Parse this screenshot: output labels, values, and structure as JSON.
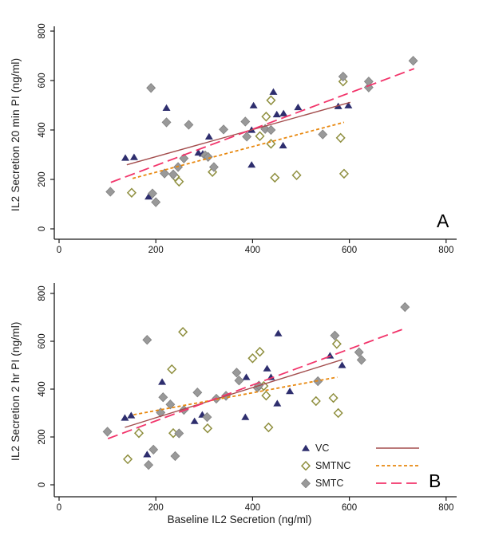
{
  "chart_data": [
    {
      "type": "scatter",
      "panel_label": "A",
      "xlabel": "",
      "ylabel": "IL2 Secretion 20 min PI (ng/ml)",
      "xlim": [
        0,
        800
      ],
      "ylim": [
        0,
        800
      ],
      "x_ticks": [
        0,
        200,
        400,
        600,
        800
      ],
      "y_ticks": [
        0,
        200,
        400,
        600,
        800
      ],
      "grid": false,
      "series": [
        {
          "name": "VC",
          "marker": "triangle",
          "color": "#2e2e6e",
          "points": [
            [
              137,
              287
            ],
            [
              155,
              290
            ],
            [
              185,
              130
            ],
            [
              222,
              489
            ],
            [
              288,
              308
            ],
            [
              297,
              304
            ],
            [
              310,
              373
            ],
            [
              398,
              259
            ],
            [
              398,
              400
            ],
            [
              402,
              499
            ],
            [
              443,
              554
            ],
            [
              450,
              463
            ],
            [
              463,
              337
            ],
            [
              464,
              467
            ],
            [
              494,
              492
            ],
            [
              577,
              496
            ],
            [
              598,
              499
            ]
          ],
          "trend": {
            "style": "solid",
            "color": "#a34d4d",
            "from": [
              140,
              259
            ],
            "to": [
              602,
              512
            ]
          }
        },
        {
          "name": "SMTNC",
          "marker": "open-diamond",
          "color": "#8f8f3f",
          "points": [
            [
              150,
              146
            ],
            [
              240,
              211
            ],
            [
              248,
              191
            ],
            [
              317,
              230
            ],
            [
              415,
              375
            ],
            [
              428,
              454
            ],
            [
              438,
              344
            ],
            [
              438,
              520
            ],
            [
              446,
              207
            ],
            [
              491,
              217
            ],
            [
              582,
              368
            ],
            [
              587,
              596
            ],
            [
              589,
              223
            ]
          ],
          "trend": {
            "style": "dash",
            "color": "#e8880f",
            "from": [
              152,
              204
            ],
            "to": [
              589,
              431
            ]
          }
        },
        {
          "name": "SMTC",
          "marker": "diamond",
          "color": "#999999",
          "points": [
            [
              106,
              150
            ],
            [
              190,
              570
            ],
            [
              193,
              143
            ],
            [
              200,
              108
            ],
            [
              218,
              224
            ],
            [
              222,
              431
            ],
            [
              236,
              220
            ],
            [
              246,
              250
            ],
            [
              258,
              285
            ],
            [
              268,
              421
            ],
            [
              302,
              297
            ],
            [
              308,
              291
            ],
            [
              320,
              250
            ],
            [
              340,
              402
            ],
            [
              385,
              434
            ],
            [
              388,
              373
            ],
            [
              426,
              404
            ],
            [
              438,
              400
            ],
            [
              545,
              382
            ],
            [
              587,
              616
            ],
            [
              640,
              572
            ],
            [
              640,
              596
            ],
            [
              732,
              680
            ]
          ],
          "trend": {
            "style": "longdash",
            "color": "#f2356b",
            "from": [
              107,
              188
            ],
            "to": [
              734,
              648
            ]
          }
        }
      ]
    },
    {
      "type": "scatter",
      "panel_label": "B",
      "xlabel": "Baseline IL2 Secretion (ng/ml)",
      "ylabel": "IL2 Secretion 2 hr PI (ng/ml)",
      "xlim": [
        0,
        800
      ],
      "ylim": [
        0,
        800
      ],
      "x_ticks": [
        0,
        200,
        400,
        600,
        800
      ],
      "y_ticks": [
        0,
        200,
        400,
        600,
        800
      ],
      "grid": false,
      "series": [
        {
          "name": "VC",
          "marker": "triangle",
          "color": "#2e2e6e",
          "points": [
            [
              136,
              280
            ],
            [
              149,
              290
            ],
            [
              182,
              127
            ],
            [
              213,
              430
            ],
            [
              280,
              266
            ],
            [
              296,
              293
            ],
            [
              385,
              283
            ],
            [
              387,
              450
            ],
            [
              430,
              486
            ],
            [
              438,
              450
            ],
            [
              451,
              340
            ],
            [
              453,
              633
            ],
            [
              477,
              391
            ],
            [
              560,
              540
            ],
            [
              585,
              500
            ]
          ],
          "trend": {
            "style": "solid",
            "color": "#a34d4d",
            "from": [
              136,
              240
            ],
            "to": [
              585,
              523
            ]
          }
        },
        {
          "name": "SMTNC",
          "marker": "open-diamond",
          "color": "#8f8f3f",
          "points": [
            [
              142,
              107
            ],
            [
              165,
              216
            ],
            [
              233,
              483
            ],
            [
              236,
              216
            ],
            [
              256,
              639
            ],
            [
              307,
              236
            ],
            [
              400,
              529
            ],
            [
              415,
              556
            ],
            [
              423,
              413
            ],
            [
              428,
              373
            ],
            [
              433,
              240
            ],
            [
              531,
              350
            ],
            [
              567,
              363
            ],
            [
              574,
              589
            ],
            [
              577,
              300
            ]
          ],
          "trend": {
            "style": "dash",
            "color": "#e8880f",
            "from": [
              154,
              293
            ],
            "to": [
              575,
              450
            ]
          }
        },
        {
          "name": "SMTC",
          "marker": "diamond",
          "color": "#999999",
          "points": [
            [
              100,
              222
            ],
            [
              182,
              606
            ],
            [
              185,
              83
            ],
            [
              195,
              147
            ],
            [
              210,
              302
            ],
            [
              215,
              366
            ],
            [
              230,
              336
            ],
            [
              240,
              120
            ],
            [
              248,
              215
            ],
            [
              258,
              313
            ],
            [
              286,
              386
            ],
            [
              306,
              283
            ],
            [
              325,
              360
            ],
            [
              345,
              372
            ],
            [
              367,
              469
            ],
            [
              372,
              436
            ],
            [
              410,
              406
            ],
            [
              413,
              415
            ],
            [
              535,
              433
            ],
            [
              570,
              624
            ],
            [
              620,
              554
            ],
            [
              625,
              522
            ],
            [
              715,
              743
            ]
          ],
          "trend": {
            "style": "longdash",
            "color": "#f2356b",
            "from": [
              101,
              193
            ],
            "to": [
              714,
              653
            ]
          }
        }
      ]
    }
  ],
  "legend": {
    "entries": [
      {
        "label": "VC",
        "marker": "triangle",
        "marker_color": "#2e2e6e",
        "line_style": "solid",
        "line_color": "#a34d4d"
      },
      {
        "label": "SMTNC",
        "marker": "open-diamond",
        "marker_color": "#8f8f3f",
        "line_style": "dash",
        "line_color": "#e8880f"
      },
      {
        "label": "SMTC",
        "marker": "diamond",
        "marker_color": "#999999",
        "line_style": "longdash",
        "line_color": "#f2356b"
      }
    ]
  },
  "colors": {
    "axis": "#1a1a1a",
    "tick_text": "#111111",
    "background": "#ffffff"
  }
}
